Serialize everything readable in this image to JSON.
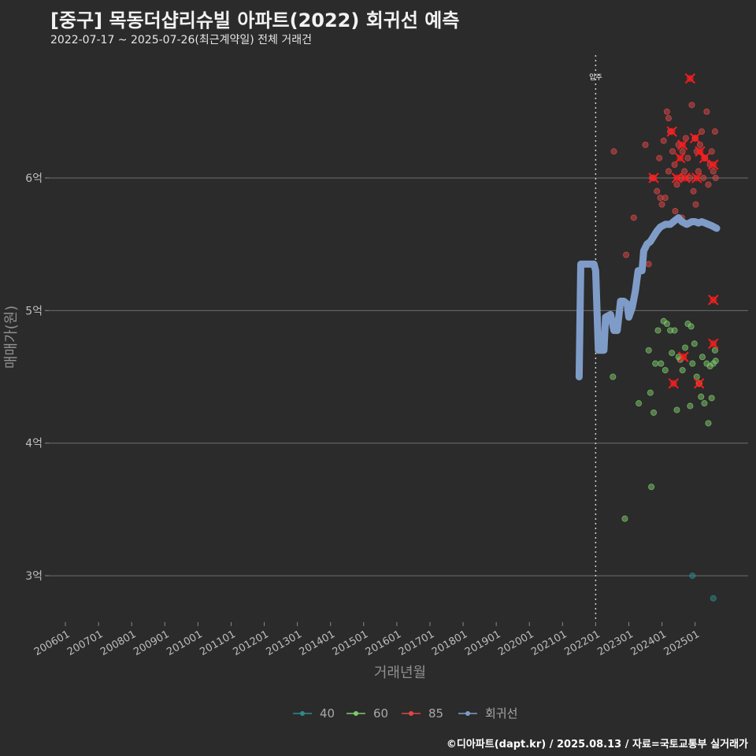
{
  "title": "[중구] 목동더샵리슈빌 아파트(2022) 회귀선 예측",
  "subtitle": "2022-07-17 ~ 2025-07-26(최근계약일) 전체 거래건",
  "caption": "©디아파트(dapt.kr) / 2025.08.13 / 자료=국토교통부 실거래가",
  "chart_data": {
    "type": "scatter",
    "title": "[중구] 목동더샵리슈빌 아파트(2022) 회귀선 예측",
    "xlabel": "거래년월",
    "ylabel": "매매가(원)",
    "ylim": [
      2.65,
      6.95
    ],
    "xlim": [
      2005.5,
      2026.6
    ],
    "yticks": [
      {
        "v": 3,
        "label": "3억"
      },
      {
        "v": 4,
        "label": "4억"
      },
      {
        "v": 5,
        "label": "5억"
      },
      {
        "v": 6,
        "label": "6억"
      }
    ],
    "xticks": [
      "200601",
      "200701",
      "200801",
      "200901",
      "201001",
      "201101",
      "201201",
      "201301",
      "201401",
      "201501",
      "201601",
      "201701",
      "201801",
      "201901",
      "202001",
      "202101",
      "202201",
      "202301",
      "202401",
      "202501"
    ],
    "annotation": {
      "x": 2022.0,
      "label": "입주"
    },
    "legend": [
      "40",
      "60",
      "85",
      "회귀선"
    ],
    "colors": {
      "40": "#2e8b8b",
      "60": "#7ecb6b",
      "85": "#e04848",
      "회귀선": "#7f9cc8"
    },
    "series": [
      {
        "name": "40",
        "points": [
          [
            2024.92,
            3.0
          ],
          [
            2025.55,
            2.83
          ]
        ]
      },
      {
        "name": "60",
        "points": [
          [
            2022.52,
            4.5
          ],
          [
            2022.88,
            3.43
          ],
          [
            2023.3,
            4.3
          ],
          [
            2023.6,
            4.7
          ],
          [
            2023.65,
            4.38
          ],
          [
            2023.68,
            3.67
          ],
          [
            2023.75,
            4.23
          ],
          [
            2023.8,
            4.6
          ],
          [
            2023.88,
            4.85
          ],
          [
            2023.97,
            4.6
          ],
          [
            2024.05,
            4.92
          ],
          [
            2024.1,
            4.55
          ],
          [
            2024.15,
            4.9
          ],
          [
            2024.25,
            4.85
          ],
          [
            2024.3,
            4.68
          ],
          [
            2024.38,
            4.85
          ],
          [
            2024.45,
            4.25
          ],
          [
            2024.5,
            4.65
          ],
          [
            2024.55,
            4.63
          ],
          [
            2024.62,
            4.55
          ],
          [
            2024.7,
            4.72
          ],
          [
            2024.78,
            4.9
          ],
          [
            2024.85,
            4.28
          ],
          [
            2024.88,
            4.88
          ],
          [
            2024.92,
            4.6
          ],
          [
            2024.98,
            4.75
          ],
          [
            2025.05,
            4.5
          ],
          [
            2025.12,
            4.45
          ],
          [
            2025.18,
            4.35
          ],
          [
            2025.22,
            4.65
          ],
          [
            2025.28,
            4.3
          ],
          [
            2025.35,
            4.6
          ],
          [
            2025.4,
            4.15
          ],
          [
            2025.45,
            4.58
          ],
          [
            2025.5,
            4.34
          ],
          [
            2025.55,
            4.6
          ],
          [
            2025.6,
            4.7
          ],
          [
            2025.62,
            4.62
          ]
        ]
      },
      {
        "name": "85",
        "points": [
          [
            2022.55,
            6.2
          ],
          [
            2022.92,
            5.42
          ],
          [
            2023.15,
            5.7
          ],
          [
            2023.5,
            6.25
          ],
          [
            2023.6,
            5.35
          ],
          [
            2023.7,
            6.0
          ],
          [
            2023.85,
            5.9
          ],
          [
            2023.92,
            6.15
          ],
          [
            2023.95,
            5.85
          ],
          [
            2024.05,
            6.28
          ],
          [
            2024.1,
            5.85
          ],
          [
            2024.15,
            6.5
          ],
          [
            2024.2,
            6.05
          ],
          [
            2024.25,
            6.35
          ],
          [
            2024.32,
            6.2
          ],
          [
            2024.38,
            6.1
          ],
          [
            2024.45,
            5.95
          ],
          [
            2024.5,
            6.25
          ],
          [
            2024.55,
            6.0
          ],
          [
            2024.62,
            6.2
          ],
          [
            2024.68,
            6.05
          ],
          [
            2024.72,
            6.3
          ],
          [
            2024.78,
            6.15
          ],
          [
            2024.85,
            6.0
          ],
          [
            2024.9,
            6.55
          ],
          [
            2024.95,
            5.9
          ],
          [
            2025.0,
            6.3
          ],
          [
            2025.05,
            6.2
          ],
          [
            2025.1,
            6.05
          ],
          [
            2025.15,
            6.25
          ],
          [
            2025.2,
            6.35
          ],
          [
            2025.25,
            6.0
          ],
          [
            2025.3,
            6.15
          ],
          [
            2025.35,
            6.5
          ],
          [
            2025.4,
            5.95
          ],
          [
            2025.45,
            6.1
          ],
          [
            2025.5,
            6.2
          ],
          [
            2025.55,
            6.05
          ],
          [
            2025.6,
            6.35
          ],
          [
            2025.62,
            6.0
          ],
          [
            2024.0,
            5.8
          ],
          [
            2024.4,
            5.75
          ],
          [
            2024.6,
            5.7
          ],
          [
            2025.02,
            5.8
          ],
          [
            2024.2,
            6.45
          ]
        ]
      },
      {
        "name": "85-highlight",
        "points": [
          [
            2023.75,
            6.0
          ],
          [
            2024.3,
            6.35
          ],
          [
            2024.45,
            6.0
          ],
          [
            2024.55,
            6.15
          ],
          [
            2024.62,
            6.25
          ],
          [
            2024.7,
            6.0
          ],
          [
            2024.85,
            6.75
          ],
          [
            2025.0,
            6.3
          ],
          [
            2025.05,
            6.0
          ],
          [
            2025.15,
            6.2
          ],
          [
            2025.28,
            6.15
          ],
          [
            2025.55,
            6.1
          ],
          [
            2025.55,
            5.08
          ],
          [
            2025.55,
            4.75
          ],
          [
            2025.12,
            4.45
          ],
          [
            2024.35,
            4.45
          ],
          [
            2024.65,
            4.65
          ]
        ]
      }
    ],
    "regression": [
      [
        2021.5,
        4.5
      ],
      [
        2021.55,
        5.35
      ],
      [
        2021.65,
        5.35
      ],
      [
        2021.75,
        5.35
      ],
      [
        2021.85,
        5.35
      ],
      [
        2021.95,
        5.35
      ],
      [
        2022.0,
        5.3
      ],
      [
        2022.08,
        4.7
      ],
      [
        2022.25,
        4.7
      ],
      [
        2022.3,
        4.95
      ],
      [
        2022.45,
        4.97
      ],
      [
        2022.55,
        4.85
      ],
      [
        2022.65,
        4.85
      ],
      [
        2022.75,
        5.07
      ],
      [
        2022.85,
        5.07
      ],
      [
        2022.95,
        5.05
      ],
      [
        2023.0,
        4.95
      ],
      [
        2023.1,
        5.02
      ],
      [
        2023.2,
        5.15
      ],
      [
        2023.28,
        5.3
      ],
      [
        2023.4,
        5.3
      ],
      [
        2023.45,
        5.45
      ],
      [
        2023.55,
        5.5
      ],
      [
        2023.65,
        5.52
      ],
      [
        2023.75,
        5.56
      ],
      [
        2023.85,
        5.6
      ],
      [
        2023.95,
        5.63
      ],
      [
        2024.1,
        5.65
      ],
      [
        2024.25,
        5.65
      ],
      [
        2024.4,
        5.68
      ],
      [
        2024.5,
        5.7
      ],
      [
        2024.6,
        5.67
      ],
      [
        2024.75,
        5.65
      ],
      [
        2024.9,
        5.67
      ],
      [
        2025.0,
        5.67
      ],
      [
        2025.1,
        5.66
      ],
      [
        2025.2,
        5.67
      ],
      [
        2025.3,
        5.66
      ],
      [
        2025.4,
        5.65
      ],
      [
        2025.5,
        5.64
      ],
      [
        2025.65,
        5.62
      ]
    ]
  }
}
